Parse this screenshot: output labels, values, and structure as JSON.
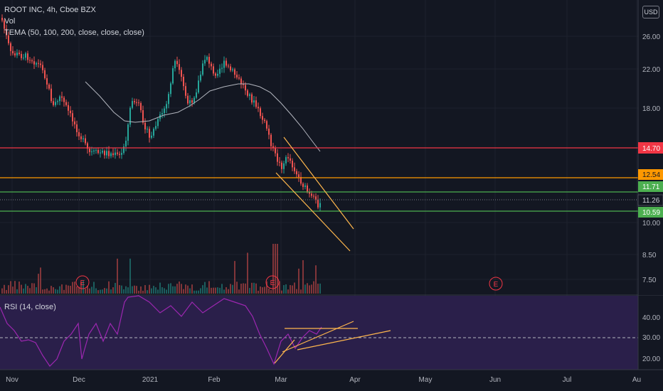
{
  "header": {
    "symbol_line": "ROOT INC, 4h, Cboe BZX",
    "volume_label": "Vol",
    "indicator_label": "TEMA (50, 100, 200, close, close, close)",
    "currency_button": "USD"
  },
  "rsi": {
    "label": "RSI (14, close)",
    "axis_ticks": [
      "40.00",
      "30.00",
      "20.00"
    ]
  },
  "price_axis": {
    "ticks": [
      "26.00",
      "22.00",
      "18.00",
      "10.00",
      "8.50",
      "7.50"
    ],
    "level_badges": [
      {
        "text": "14.70",
        "color": "#f23645"
      },
      {
        "text": "12.54",
        "color": "#ff9800"
      },
      {
        "text": "11.71",
        "color": "#4caf50"
      },
      {
        "text": "11.26",
        "color": "#131722"
      },
      {
        "text": "10.59",
        "color": "#4caf50"
      }
    ]
  },
  "time_axis": {
    "labels": [
      "Nov",
      "Dec",
      "2021",
      "Feb",
      "Mar",
      "Apr",
      "May",
      "Jun",
      "Jul",
      "Au"
    ]
  },
  "earnings_markers": [
    "E",
    "E",
    "E"
  ],
  "colors": {
    "up": "#26a69a",
    "down": "#ef5350",
    "background": "#131722",
    "rsi_line": "#9c27b0",
    "tema": "#b2b5be",
    "channel": "#ffb74d"
  }
}
